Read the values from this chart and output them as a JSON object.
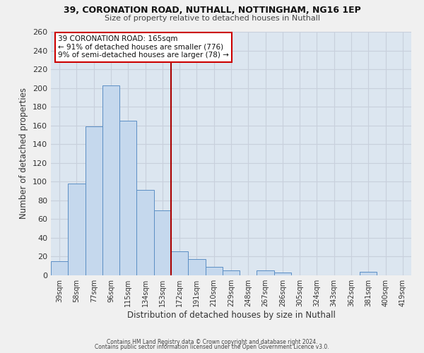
{
  "title1": "39, CORONATION ROAD, NUTHALL, NOTTINGHAM, NG16 1EP",
  "title2": "Size of property relative to detached houses in Nuthall",
  "xlabel": "Distribution of detached houses by size in Nuthall",
  "ylabel": "Number of detached properties",
  "bar_labels": [
    "39sqm",
    "58sqm",
    "77sqm",
    "96sqm",
    "115sqm",
    "134sqm",
    "153sqm",
    "172sqm",
    "191sqm",
    "210sqm",
    "229sqm",
    "248sqm",
    "267sqm",
    "286sqm",
    "305sqm",
    "324sqm",
    "343sqm",
    "362sqm",
    "381sqm",
    "400sqm",
    "419sqm"
  ],
  "bar_values": [
    15,
    98,
    159,
    203,
    165,
    91,
    69,
    26,
    17,
    9,
    5,
    0,
    5,
    3,
    0,
    0,
    0,
    0,
    4,
    0,
    0
  ],
  "bar_color": "#c5d8ed",
  "bar_edge_color": "#5b8ec4",
  "reference_line_color": "#aa0000",
  "annotation_title": "39 CORONATION ROAD: 165sqm",
  "annotation_line1": "← 91% of detached houses are smaller (776)",
  "annotation_line2": "9% of semi-detached houses are larger (78) →",
  "annotation_box_edge_color": "#cc0000",
  "ylim": [
    0,
    260
  ],
  "yticks": [
    0,
    20,
    40,
    60,
    80,
    100,
    120,
    140,
    160,
    180,
    200,
    220,
    240,
    260
  ],
  "grid_color": "#c8d0dc",
  "background_color": "#dce6f0",
  "fig_facecolor": "#f0f0f0",
  "footer1": "Contains HM Land Registry data © Crown copyright and database right 2024.",
  "footer2": "Contains public sector information licensed under the Open Government Licence v3.0."
}
